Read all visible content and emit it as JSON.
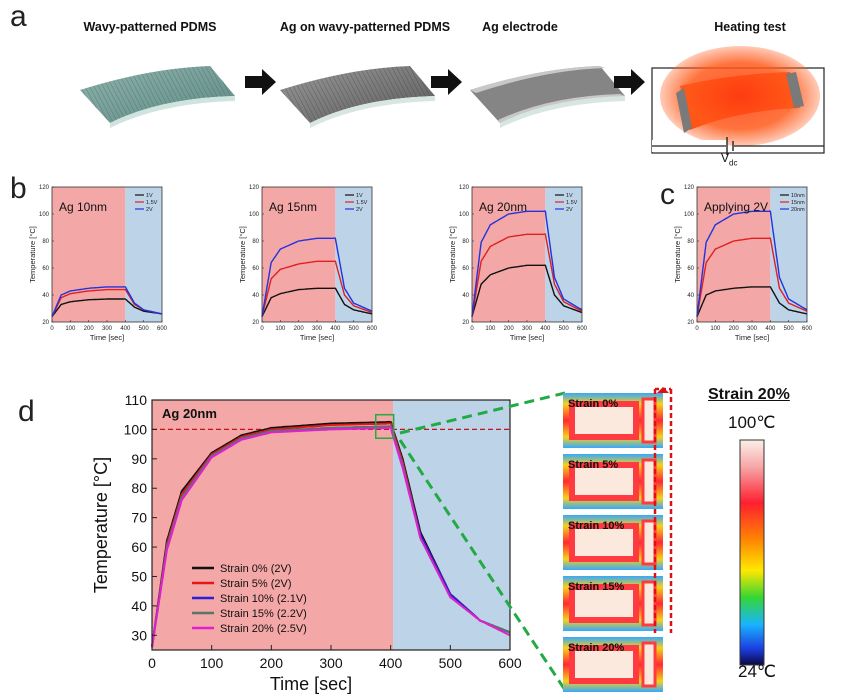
{
  "panel_a": {
    "letter": "a",
    "steps": [
      "Wavy-patterned PDMS",
      "Ag on wavy-patterned PDMS",
      "Ag electrode",
      "Heating test"
    ],
    "vdc_label": "V",
    "vdc_sub": "dc"
  },
  "panel_b_letter": "b",
  "panel_c_letter": "c",
  "panel_d_letter": "d",
  "small_charts": [
    {
      "title": "Ag 10nm",
      "legend": [
        "1V",
        "1.5V",
        "2V"
      ],
      "colors": [
        "#111111",
        "#e02020",
        "#2233dd"
      ],
      "plateaus": [
        37,
        44,
        46
      ]
    },
    {
      "title": "Ag 15nm",
      "legend": [
        "1V",
        "1.5V",
        "2V"
      ],
      "colors": [
        "#111111",
        "#e02020",
        "#2233dd"
      ],
      "plateaus": [
        45,
        65,
        82
      ]
    },
    {
      "title": "Ag 20nm",
      "legend": [
        "1V",
        "1.5V",
        "2V"
      ],
      "colors": [
        "#111111",
        "#e02020",
        "#2233dd"
      ],
      "plateaus": [
        62,
        85,
        102
      ]
    },
    {
      "title": "Applying 2V",
      "legend": [
        "10nm",
        "15nm",
        "20nm"
      ],
      "colors": [
        "#111111",
        "#e02020",
        "#2233dd"
      ],
      "plateaus": [
        46,
        82,
        102
      ]
    }
  ],
  "small_axes": {
    "xlabel": "Time [sec]",
    "ylabel": "Temperature [°C]",
    "xticks": [
      "0",
      "100",
      "200",
      "300",
      "400",
      "500",
      "600"
    ],
    "yticks": [
      "20",
      "40",
      "60",
      "80",
      "100",
      "120"
    ]
  },
  "chart_data": [
    {
      "type": "line",
      "title": "Ag 10nm",
      "xlabel": "Time [sec]",
      "ylabel": "Temperature [°C]",
      "xlim": [
        0,
        600
      ],
      "ylim": [
        20,
        120
      ],
      "x": [
        0,
        50,
        100,
        200,
        300,
        400,
        450,
        500,
        600
      ],
      "series": [
        {
          "name": "1V",
          "values": [
            24,
            33,
            35,
            36.5,
            37,
            37,
            31,
            28,
            26
          ]
        },
        {
          "name": "1.5V",
          "values": [
            24,
            38,
            41,
            43,
            44,
            44,
            33,
            29,
            26
          ]
        },
        {
          "name": "2V",
          "values": [
            24,
            40,
            43,
            45,
            46,
            46,
            34,
            29,
            26
          ]
        }
      ]
    },
    {
      "type": "line",
      "title": "Ag 15nm",
      "xlabel": "Time [sec]",
      "ylabel": "Temperature [°C]",
      "xlim": [
        0,
        600
      ],
      "ylim": [
        20,
        120
      ],
      "x": [
        0,
        50,
        100,
        200,
        300,
        400,
        450,
        500,
        600
      ],
      "series": [
        {
          "name": "1V",
          "values": [
            24,
            38,
            41,
            44,
            45,
            45,
            33,
            29,
            26
          ]
        },
        {
          "name": "1.5V",
          "values": [
            24,
            52,
            59,
            63,
            65,
            65,
            40,
            32,
            27
          ]
        },
        {
          "name": "2V",
          "values": [
            24,
            64,
            74,
            80,
            82,
            82,
            45,
            34,
            28
          ]
        }
      ]
    },
    {
      "type": "line",
      "title": "Ag 20nm",
      "xlabel": "Time [sec]",
      "ylabel": "Temperature [°C]",
      "xlim": [
        0,
        600
      ],
      "ylim": [
        20,
        120
      ],
      "x": [
        0,
        50,
        100,
        200,
        300,
        400,
        450,
        500,
        600
      ],
      "series": [
        {
          "name": "1V",
          "values": [
            24,
            48,
            55,
            60,
            62,
            62,
            40,
            32,
            27
          ]
        },
        {
          "name": "1.5V",
          "values": [
            24,
            65,
            76,
            83,
            85,
            85,
            48,
            35,
            28
          ]
        },
        {
          "name": "2V",
          "values": [
            24,
            79,
            92,
            100,
            102,
            102,
            53,
            37,
            29
          ]
        }
      ]
    },
    {
      "type": "line",
      "title": "Applying 2V",
      "xlabel": "Time [sec]",
      "ylabel": "Temperature [°C]",
      "xlim": [
        0,
        600
      ],
      "ylim": [
        20,
        120
      ],
      "x": [
        0,
        50,
        100,
        200,
        300,
        400,
        450,
        500,
        600
      ],
      "series": [
        {
          "name": "10nm",
          "values": [
            24,
            40,
            43,
            45,
            46,
            46,
            34,
            29,
            26
          ]
        },
        {
          "name": "15nm",
          "values": [
            24,
            64,
            74,
            80,
            82,
            82,
            45,
            34,
            28
          ]
        },
        {
          "name": "20nm",
          "values": [
            24,
            79,
            92,
            100,
            102,
            102,
            53,
            37,
            29
          ]
        }
      ]
    },
    {
      "type": "line",
      "title": "Ag 20nm",
      "xlabel": "Time [sec]",
      "ylabel": "Temperature [°C]",
      "xlim": [
        0,
        600
      ],
      "ylim": [
        25,
        110
      ],
      "x": [
        0,
        25,
        50,
        100,
        150,
        200,
        300,
        400,
        420,
        450,
        500,
        550,
        600
      ],
      "reference_line": 100,
      "series": [
        {
          "name": "Strain 0% (2V)",
          "color": "#111111",
          "values": [
            26,
            62,
            79,
            92,
            98,
            100.5,
            102,
            102.5,
            90,
            65,
            44,
            35,
            31
          ]
        },
        {
          "name": "Strain 5% (2V)",
          "color": "#e01818",
          "values": [
            26,
            61,
            78,
            91.5,
            97.5,
            100,
            101.5,
            102,
            89,
            64,
            44,
            35,
            31
          ]
        },
        {
          "name": "Strain 10% (2.1V)",
          "color": "#2a1fd8",
          "values": [
            26,
            60,
            77,
            91,
            97,
            99.5,
            100.5,
            101,
            88,
            64,
            44,
            35,
            31
          ]
        },
        {
          "name": "Strain 15% (2.2V)",
          "color": "#557766",
          "values": [
            26,
            60,
            77,
            91,
            97,
            99.5,
            100.5,
            101,
            88,
            63,
            43,
            35,
            31
          ]
        },
        {
          "name": "Strain 20% (2.5V)",
          "color": "#e020d0",
          "values": [
            26,
            59,
            76,
            90.5,
            96.5,
            99,
            100,
            100.5,
            87,
            63,
            43,
            35,
            30
          ]
        }
      ],
      "xticks": [
        "0",
        "100",
        "200",
        "300",
        "400",
        "500",
        "600"
      ],
      "yticks": [
        "30",
        "40",
        "50",
        "60",
        "70",
        "80",
        "90",
        "100",
        "110"
      ]
    }
  ],
  "thermal": {
    "labels": [
      "Strain 0%",
      "Strain 5%",
      "Strain 10%",
      "Strain 15%",
      "Strain 20%"
    ],
    "strain_title": "Strain 20%",
    "max_label": "100℃",
    "min_label": "24℃"
  },
  "colors": {
    "heating_bg": "#f4a7a7",
    "cooling_bg": "#bcd3e8",
    "ref_line": "#c0141a",
    "green_dash": "#22aa44",
    "strain_red": "#e01010"
  }
}
